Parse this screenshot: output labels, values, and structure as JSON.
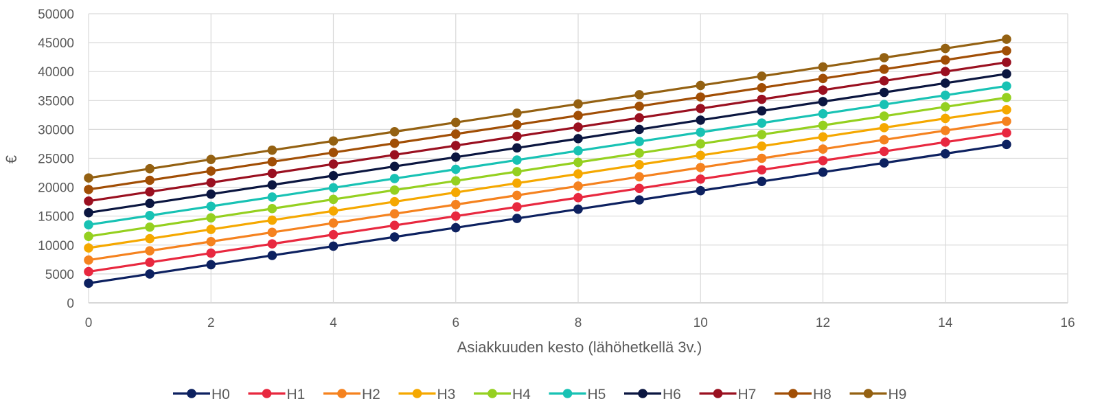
{
  "chart_data": {
    "type": "line",
    "title": "",
    "xlabel": "Asiakkuuden kesto (lähöhetkellä 3v.)",
    "ylabel": "€",
    "xlim": [
      0,
      16
    ],
    "ylim": [
      0,
      50000
    ],
    "x_ticks": [
      0,
      2,
      4,
      6,
      8,
      10,
      12,
      14,
      16
    ],
    "y_ticks": [
      0,
      5000,
      10000,
      15000,
      20000,
      25000,
      30000,
      35000,
      40000,
      45000,
      50000
    ],
    "grid": "both",
    "legend": "bottom",
    "x": [
      0,
      1,
      2,
      3,
      4,
      5,
      6,
      7,
      8,
      9,
      10,
      11,
      12,
      13,
      14,
      15
    ],
    "series": [
      {
        "name": "H0",
        "color": "#0d2160",
        "values": [
          3400,
          5000,
          6600,
          8200,
          9800,
          11400,
          13000,
          14600,
          16200,
          17800,
          19400,
          21000,
          22600,
          24200,
          25800,
          27400
        ]
      },
      {
        "name": "H1",
        "color": "#e8283f",
        "values": [
          5400,
          7000,
          8600,
          10200,
          11800,
          13400,
          15000,
          16600,
          18200,
          19800,
          21400,
          23000,
          24600,
          26200,
          27800,
          29400
        ]
      },
      {
        "name": "H2",
        "color": "#f5821f",
        "values": [
          7400,
          9000,
          10600,
          12200,
          13800,
          15400,
          17000,
          18600,
          20200,
          21800,
          23400,
          25000,
          26600,
          28200,
          29800,
          31400
        ]
      },
      {
        "name": "H3",
        "color": "#f5a800",
        "values": [
          9500,
          11100,
          12700,
          14300,
          15900,
          17500,
          19100,
          20700,
          22300,
          23900,
          25500,
          27100,
          28700,
          30300,
          31900,
          33400
        ]
      },
      {
        "name": "H4",
        "color": "#95d020",
        "values": [
          11500,
          13100,
          14700,
          16300,
          17900,
          19500,
          21100,
          22700,
          24300,
          25900,
          27500,
          29100,
          30700,
          32300,
          33900,
          35500
        ]
      },
      {
        "name": "H5",
        "color": "#18c2b4",
        "values": [
          13500,
          15100,
          16700,
          18300,
          19900,
          21500,
          23100,
          24700,
          26300,
          27900,
          29500,
          31100,
          32700,
          34300,
          35900,
          37500
        ]
      },
      {
        "name": "H6",
        "color": "#0b1640",
        "values": [
          15600,
          17200,
          18800,
          20400,
          22000,
          23600,
          25200,
          26800,
          28400,
          30000,
          31600,
          33200,
          34800,
          36400,
          38000,
          39600
        ]
      },
      {
        "name": "H7",
        "color": "#9a1020",
        "values": [
          17600,
          19200,
          20800,
          22400,
          24000,
          25600,
          27200,
          28800,
          30400,
          32000,
          33600,
          35200,
          36800,
          38400,
          40000,
          41600
        ]
      },
      {
        "name": "H8",
        "color": "#a14e05",
        "values": [
          19600,
          21200,
          22800,
          24400,
          26000,
          27600,
          29200,
          30800,
          32400,
          34000,
          35600,
          37200,
          38800,
          40400,
          42000,
          43600
        ]
      },
      {
        "name": "H9",
        "color": "#946112",
        "values": [
          21600,
          23200,
          24800,
          26400,
          28000,
          29600,
          31200,
          32800,
          34400,
          36000,
          37600,
          39200,
          40800,
          42400,
          44000,
          45600
        ]
      }
    ]
  }
}
